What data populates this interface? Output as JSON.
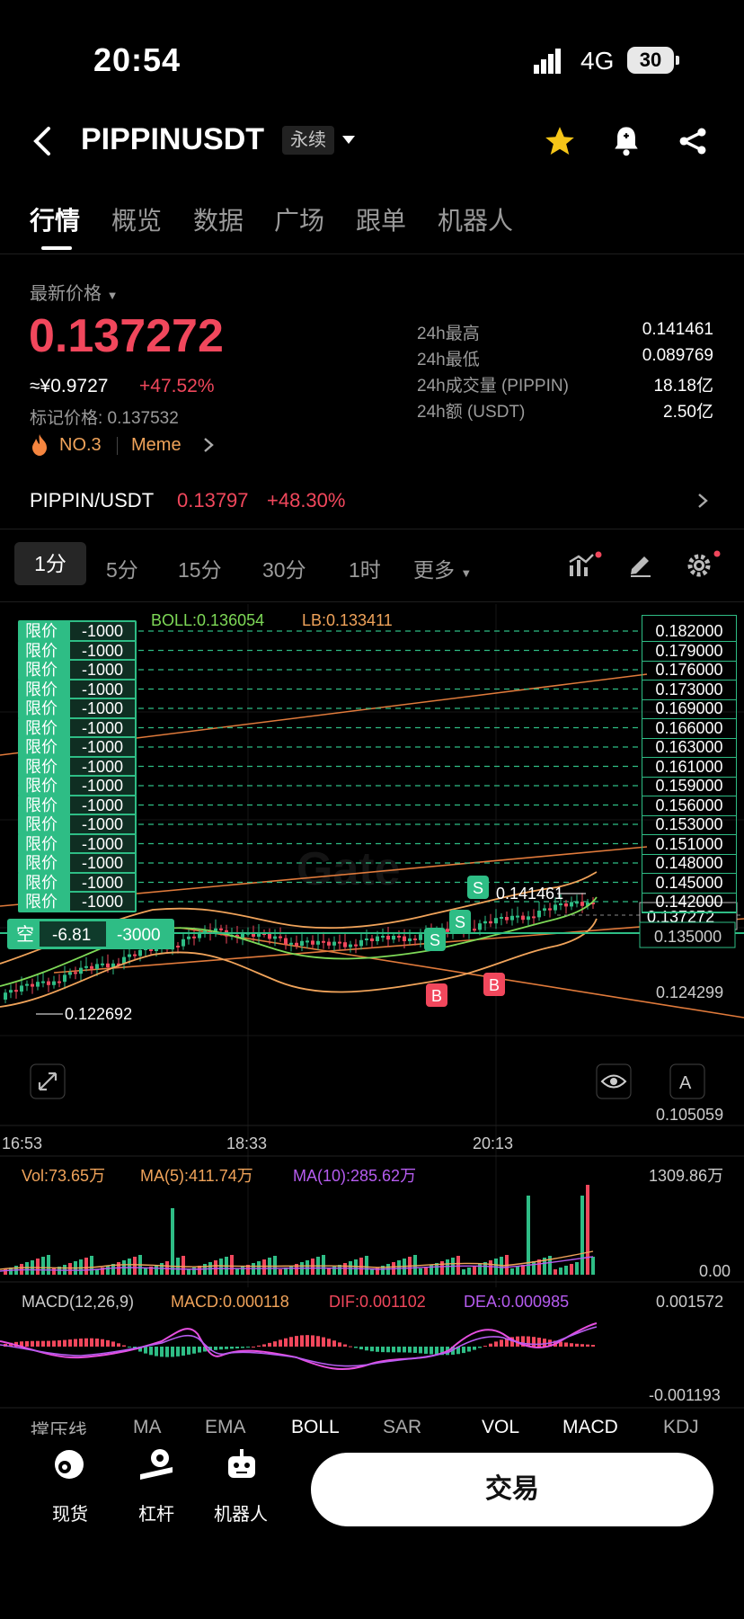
{
  "status": {
    "time": "20:54",
    "network": "4G",
    "battery": "30"
  },
  "header": {
    "title": "PIPPINUSDT",
    "contract_type": "永续"
  },
  "tabs": [
    "行情",
    "概览",
    "数据",
    "广场",
    "跟单",
    "机器人"
  ],
  "price": {
    "label": "最新价格",
    "last": "0.137272",
    "cny": "≈¥0.9727",
    "change": "+47.52%",
    "mark": "标记价格: 0.137532",
    "rank": "NO.3",
    "sector": "Meme"
  },
  "stats": [
    {
      "k": "24h最高",
      "v": "0.141461"
    },
    {
      "k": "24h最低",
      "v": "0.089769"
    },
    {
      "k": "24h成交量 (PIPPIN)",
      "v": "18.18亿"
    },
    {
      "k": "24h额 (USDT)",
      "v": "2.50亿"
    }
  ],
  "spot": {
    "pair": "PIPPIN/USDT",
    "price": "0.13797",
    "change": "+48.30%"
  },
  "timeframes": [
    "1分",
    "5分",
    "15分",
    "30分",
    "1时",
    "更多"
  ],
  "chart": {
    "boll": "BOLL:0.136054",
    "lb": "LB:0.133411",
    "order_label": "限价",
    "order_qty": "-1000",
    "position": {
      "side": "空",
      "pnl": "-6.81",
      "qty": "-3000"
    },
    "price_levels": [
      "0.182000",
      "0.179000",
      "0.176000",
      "0.173000",
      "0.169000",
      "0.166000",
      "0.163000",
      "0.161000",
      "0.159000",
      "0.156000",
      "0.153000",
      "0.151000",
      "0.148000",
      "0.145000",
      "0.142000"
    ],
    "current": "0.137272",
    "entry_level": "0.135000",
    "high_marker": "0.141461",
    "low_marker": "0.122692",
    "y_mid": "0.124299",
    "y_low": "0.105059",
    "times": [
      "16:53",
      "18:33",
      "20:13"
    ],
    "vol": "Vol:73.65万",
    "ma5": "MA(5):411.74万",
    "ma10": "MA(10):285.62万",
    "vol_max": "1309.86万",
    "vol_min": "0.00",
    "macd_title": "MACD(12,26,9)",
    "macd": "MACD:0.000118",
    "dif": "DIF:0.001102",
    "dea": "DEA:0.000985",
    "macd_max": "0.001572",
    "macd_min": "-0.001193",
    "colors": {
      "up": "#2ebd85",
      "down": "#f1475c",
      "boll_mid": "#7ed957",
      "boll_band": "#f0a35a"
    }
  },
  "indicator_tabs": [
    "撑压线",
    "MA",
    "EMA",
    "BOLL",
    "SAR",
    "VOL",
    "MACD",
    "KDJ"
  ],
  "bottom_nav": [
    {
      "label": "现货",
      "icon": "spot-icon"
    },
    {
      "label": "杠杆",
      "icon": "leverage-icon"
    },
    {
      "label": "机器人",
      "icon": "robot-icon"
    }
  ],
  "trade_button": "交易"
}
